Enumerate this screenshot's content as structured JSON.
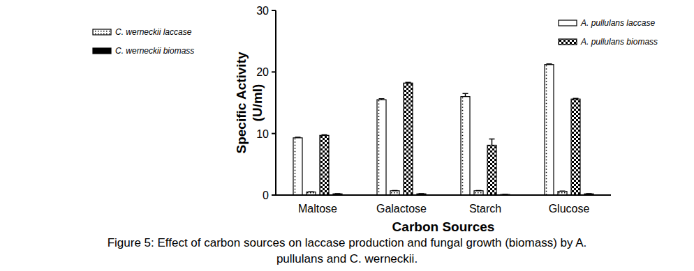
{
  "chart_data": {
    "type": "bar",
    "title": "Figure 5: Effect of carbon sources on laccase production and fungal growth (biomass) by A. pullulans and C. werneckii.",
    "x_label": "Carbon Sources",
    "y_label": "Specific Activity\n(U/ml)",
    "categories": [
      "Maltose",
      "Galactose",
      "Starch",
      "Glucose"
    ],
    "series": [
      {
        "name": "A. pullulans laccase",
        "color": "#ffffff",
        "values": [
          9.3,
          15.5,
          16.0,
          21.2
        ],
        "errors": [
          0.1,
          0.15,
          0.5,
          0.1
        ]
      },
      {
        "name": "C. werneckii laccase",
        "color": "#ffffff",
        "values": [
          0.5,
          0.7,
          0.7,
          0.6
        ],
        "errors": [
          0.05,
          0.05,
          0.05,
          0.05
        ]
      },
      {
        "name": "A. pullulans biomass",
        "color": "#000000",
        "values": [
          9.7,
          18.2,
          8.1,
          15.6
        ],
        "errors": [
          0.1,
          0.1,
          1.0,
          0.1
        ]
      },
      {
        "name": "C. werneckii biomass",
        "color": "#000000",
        "values": [
          0.2,
          0.2,
          0.1,
          0.2
        ],
        "errors": [
          0.02,
          0.02,
          0.02,
          0.02
        ]
      }
    ],
    "ylim": [
      0,
      30
    ],
    "yticks": [
      0,
      10,
      20,
      30
    ],
    "legend": "top",
    "grid": false
  }
}
